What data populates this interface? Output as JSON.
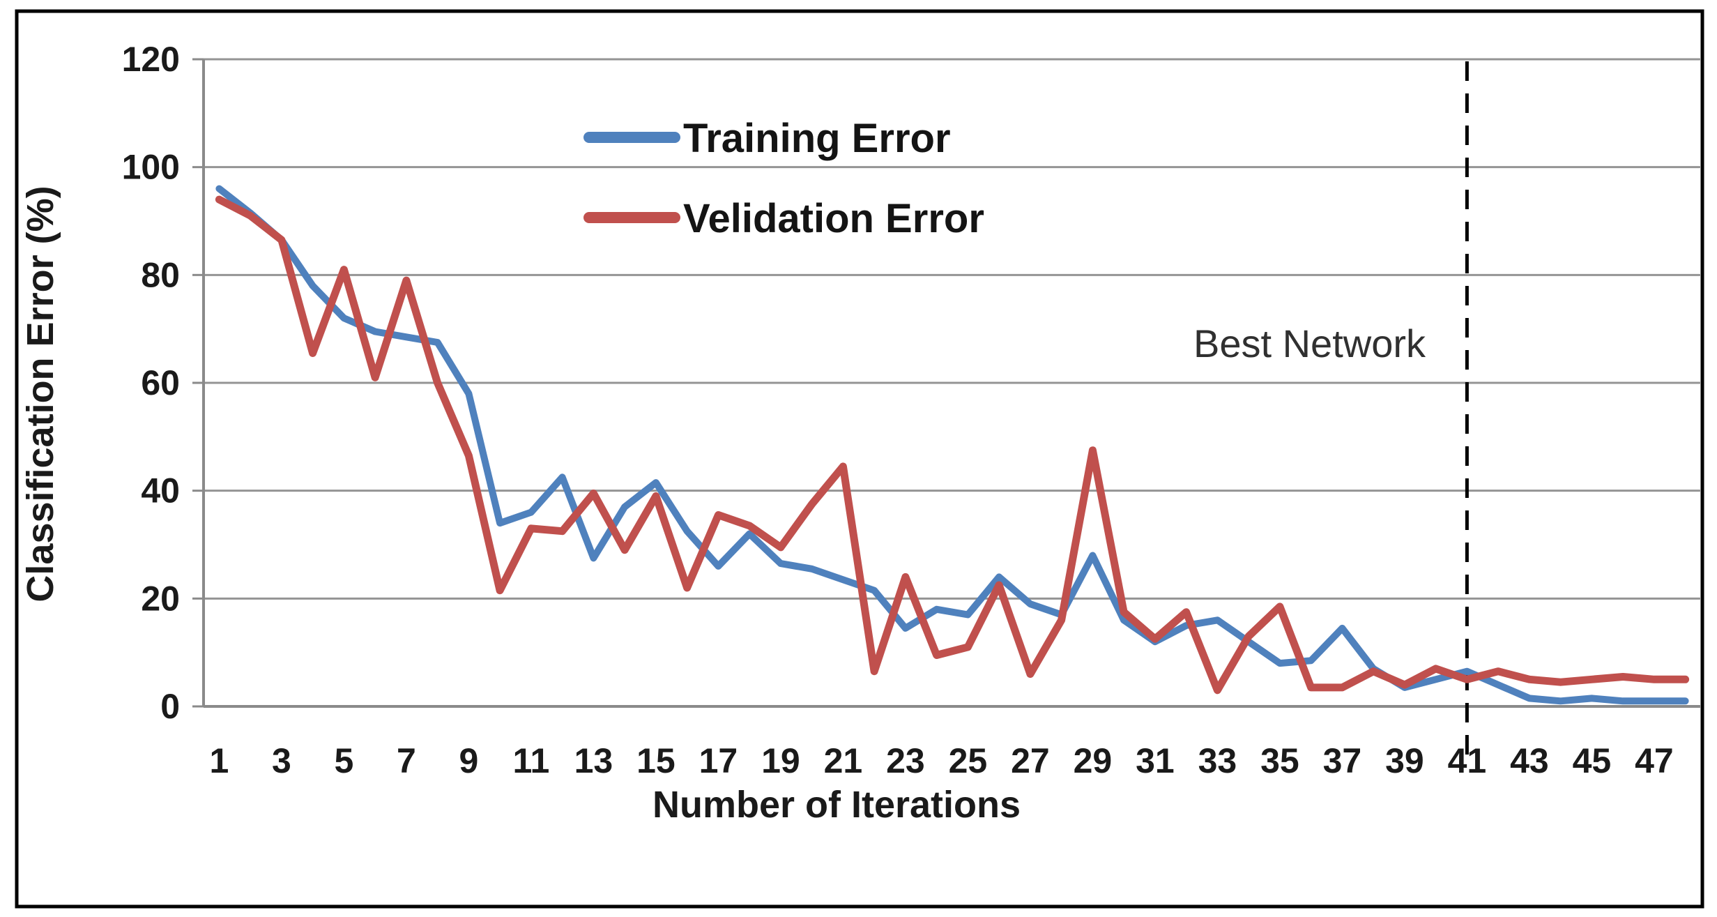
{
  "frame": {
    "border_color": "#000000"
  },
  "chart_data": {
    "type": "line",
    "title": "",
    "xlabel": "Number of Iterations",
    "ylabel": "Classification  Error (%)",
    "x": [
      1,
      2,
      3,
      4,
      5,
      6,
      7,
      8,
      9,
      10,
      11,
      12,
      13,
      14,
      15,
      16,
      17,
      18,
      19,
      20,
      21,
      22,
      23,
      24,
      25,
      26,
      27,
      28,
      29,
      30,
      31,
      32,
      33,
      34,
      35,
      36,
      37,
      38,
      39,
      40,
      41,
      42,
      43,
      44,
      45,
      46,
      47,
      48
    ],
    "x_tick_labels": [
      1,
      3,
      5,
      7,
      9,
      11,
      13,
      15,
      17,
      19,
      21,
      23,
      25,
      27,
      29,
      31,
      33,
      35,
      37,
      39,
      41,
      43,
      45,
      47
    ],
    "y_ticks": [
      0,
      20,
      40,
      60,
      80,
      100,
      120
    ],
    "ylim": [
      0,
      120
    ],
    "grid": true,
    "legend_position": "upper-left-inside",
    "series": [
      {
        "name": "Training Error",
        "color": "#4f81bd",
        "values": [
          96,
          91.5,
          86.5,
          78,
          72,
          69.5,
          68.5,
          67.5,
          58,
          34,
          36,
          42.5,
          27.5,
          37,
          41.5,
          32.5,
          26,
          32,
          26.5,
          25.5,
          23.5,
          21.5,
          14.5,
          18,
          17,
          24,
          19,
          17,
          28,
          16,
          12,
          15,
          16,
          12,
          8,
          8.5,
          14.5,
          7,
          3.5,
          5,
          6.5,
          4,
          1.5,
          1,
          1.5,
          1,
          1,
          1
        ]
      },
      {
        "name": "Velidation Error",
        "color": "#c0504d",
        "values": [
          94,
          91,
          86.5,
          65.5,
          81,
          61,
          79,
          60,
          46.5,
          21.5,
          33,
          32.5,
          39.5,
          29,
          39,
          22,
          35.5,
          33.5,
          29.5,
          37.5,
          44.5,
          6.5,
          24,
          9.5,
          11,
          22.5,
          6,
          16,
          47.5,
          17.5,
          12.5,
          17.5,
          3,
          13,
          18.5,
          3.5,
          3.5,
          6.5,
          4,
          7,
          5,
          6.5,
          5,
          4.5,
          5,
          5.5,
          5,
          5
        ]
      }
    ],
    "annotations": {
      "best_network": {
        "label": "Best Network",
        "x": 41,
        "line_style": "dashed",
        "line_color": "#000000"
      }
    }
  },
  "colors": {
    "gridline": "#949494",
    "axis": "#8a8a8a",
    "text": "#1a1a1a",
    "annotation_text": "#303030",
    "background": "#ffffff"
  }
}
